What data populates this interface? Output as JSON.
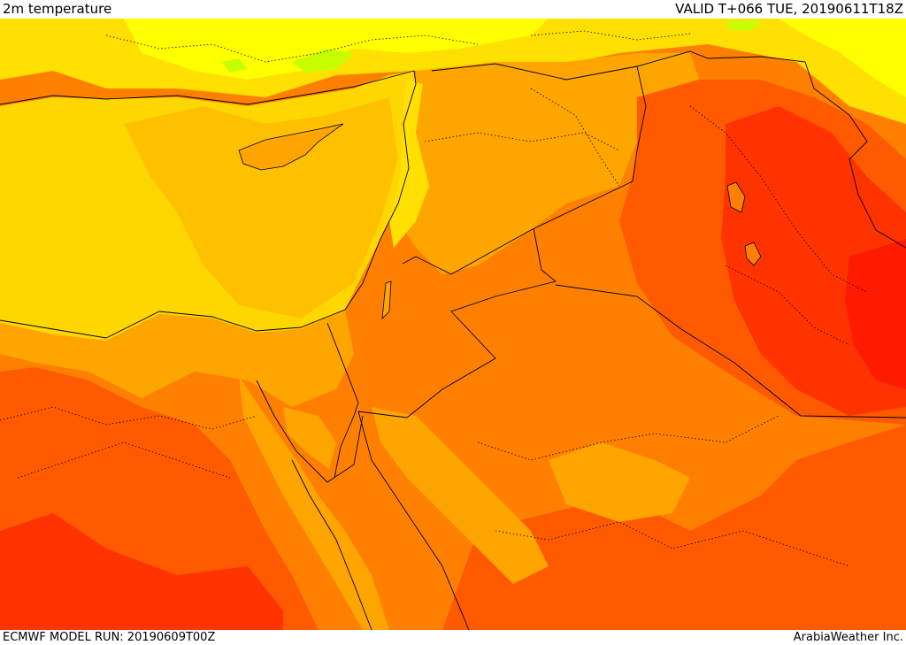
{
  "header": {
    "title": "2m temperature",
    "valid_label": "VALID T+066 TUE, 20190611T18Z"
  },
  "footer": {
    "run_label": "ECMWF MODEL RUN: 20190609T00Z",
    "credit": "ArabiaWeather Inc."
  },
  "colors": {
    "hot_red": "#ff1a00",
    "red": "#ff3300",
    "red_orange": "#ff5a00",
    "orange": "#ff8000",
    "light_orange": "#ffa500",
    "amber": "#ffc000",
    "gold": "#ffd700",
    "yellow": "#ffff00",
    "green_yellow": "#c8ff00",
    "borders": "#000000"
  }
}
